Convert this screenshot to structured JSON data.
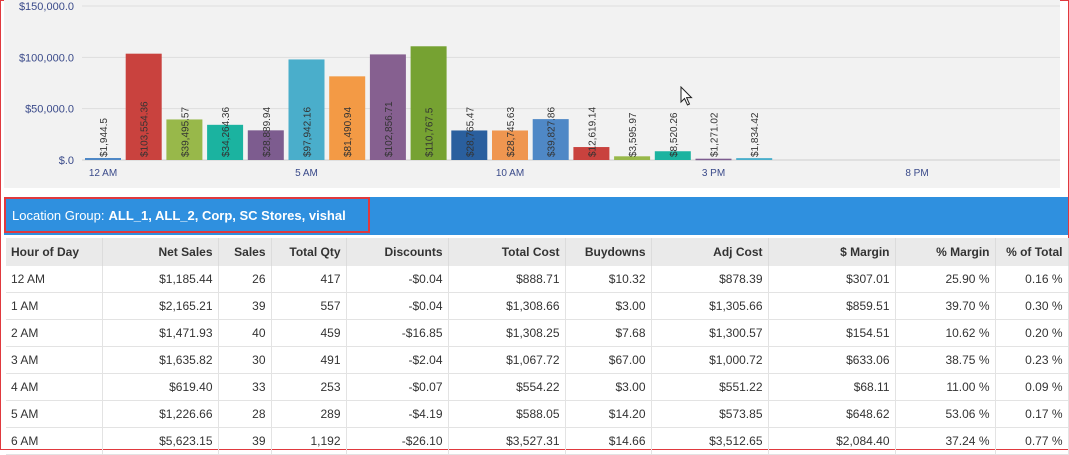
{
  "chart_data": {
    "type": "bar",
    "y_ticks": [
      "$150,000.0",
      "$100,000.0",
      "$50,000.0",
      "$.0"
    ],
    "y_tick_values": [
      150000,
      100000,
      50000,
      0
    ],
    "x_tick_labels": [
      "12 AM",
      "5 AM",
      "10 AM",
      "3 PM",
      "8 PM"
    ],
    "x_tick_hours": [
      0,
      5,
      10,
      15,
      20
    ],
    "ylim": [
      0,
      150000
    ],
    "bars": [
      {
        "hour": 0,
        "value": 1944.5,
        "label": "$1,944.5",
        "color": "#4f88c6"
      },
      {
        "hour": 1,
        "value": 103554.36,
        "label": "$103,554.36",
        "color": "#c9423e"
      },
      {
        "hour": 2,
        "value": 39495.57,
        "label": "$39,495.57",
        "color": "#98b84a"
      },
      {
        "hour": 3,
        "value": 34264.36,
        "label": "$34,264.36",
        "color": "#1bb3a0"
      },
      {
        "hour": 4,
        "value": 28889.94,
        "label": "$28,889.94",
        "color": "#7d5c8f"
      },
      {
        "hour": 5,
        "value": 97942.16,
        "label": "$97,942.16",
        "color": "#4aaecb"
      },
      {
        "hour": 6,
        "value": 81490.94,
        "label": "$81,490.94",
        "color": "#f39a45"
      },
      {
        "hour": 7,
        "value": 102856.71,
        "label": "$102,856.71",
        "color": "#866090"
      },
      {
        "hour": 8,
        "value": 110767.5,
        "label": "$110,767.5",
        "color": "#76a232"
      },
      {
        "hour": 9,
        "value": 28765.47,
        "label": "$28,765.47",
        "color": "#2a5f9e"
      },
      {
        "hour": 10,
        "value": 28745.63,
        "label": "$28,745.63",
        "color": "#ef9650"
      },
      {
        "hour": 11,
        "value": 39827.86,
        "label": "$39,827.86",
        "color": "#4f88c6"
      },
      {
        "hour": 12,
        "value": 12619.14,
        "label": "$12,619.14",
        "color": "#c9423e"
      },
      {
        "hour": 13,
        "value": 3595.97,
        "label": "$3,595.97",
        "color": "#98b84a"
      },
      {
        "hour": 14,
        "value": 8520.26,
        "label": "$8,520.26",
        "color": "#1bb3a0"
      },
      {
        "hour": 15,
        "value": 1271.02,
        "label": "$1,271.02",
        "color": "#7d5c8f"
      },
      {
        "hour": 16,
        "value": 1834.42,
        "label": "$1,834.42",
        "color": "#4aaecb"
      }
    ],
    "grid": true
  },
  "location_group": {
    "prefix": "Location Group:",
    "value": "ALL_1, ALL_2, Corp, SC Stores, vishal"
  },
  "table": {
    "columns": [
      "Hour of Day",
      "Net Sales",
      "Sales",
      "Total Qty",
      "Discounts",
      "Total Cost",
      "Buydowns",
      "Adj Cost",
      "$ Margin",
      "% Margin",
      "% of Total"
    ],
    "rows": [
      [
        "12 AM",
        "$1,185.44",
        "26",
        "417",
        "-$0.04",
        "$888.71",
        "$10.32",
        "$878.39",
        "$307.01",
        "25.90 %",
        "0.16 %"
      ],
      [
        "1 AM",
        "$2,165.21",
        "39",
        "557",
        "-$0.04",
        "$1,308.66",
        "$3.00",
        "$1,305.66",
        "$859.51",
        "39.70 %",
        "0.30 %"
      ],
      [
        "2 AM",
        "$1,471.93",
        "40",
        "459",
        "-$16.85",
        "$1,308.25",
        "$7.68",
        "$1,300.57",
        "$154.51",
        "10.62 %",
        "0.20 %"
      ],
      [
        "3 AM",
        "$1,635.82",
        "30",
        "491",
        "-$2.04",
        "$1,067.72",
        "$67.00",
        "$1,000.72",
        "$633.06",
        "38.75 %",
        "0.23 %"
      ],
      [
        "4 AM",
        "$619.40",
        "33",
        "253",
        "-$0.07",
        "$554.22",
        "$3.00",
        "$551.22",
        "$68.11",
        "11.00 %",
        "0.09 %"
      ],
      [
        "5 AM",
        "$1,226.66",
        "28",
        "289",
        "-$4.19",
        "$588.05",
        "$14.20",
        "$573.85",
        "$648.62",
        "53.06 %",
        "0.17 %"
      ],
      [
        "6 AM",
        "$5,623.15",
        "39",
        "1,192",
        "-$26.10",
        "$3,527.31",
        "$14.66",
        "$3,512.65",
        "$2,084.40",
        "37.24 %",
        "0.77 %"
      ]
    ]
  }
}
